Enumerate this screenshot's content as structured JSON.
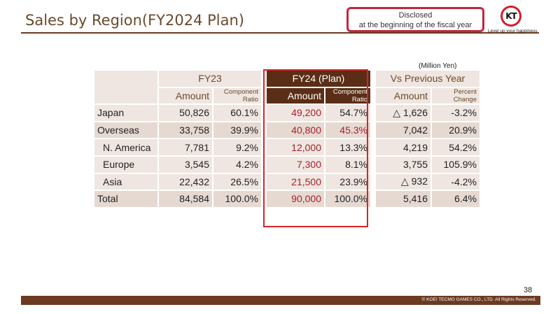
{
  "slide": {
    "title": "Sales by Region(FY2024 Plan)",
    "disclosed_line1": "Disclosed",
    "disclosed_line2": "at the beginning of the fiscal year",
    "logo_text": "KT",
    "logo_tagline": "Level up your happiness",
    "unit": "(Million Yen)",
    "page_number": "38",
    "copyright": "© KOEI TECMO GAMES CO., LTD. All Rights Reserved."
  },
  "table": {
    "groups": {
      "fy23": "FY23",
      "fy24": "FY24 (Plan)",
      "vs": "Vs Previous Year"
    },
    "subheaders": {
      "amount": "Amount",
      "component_ratio_1": "Component",
      "component_ratio_2": "Ratio",
      "percent_change_1": "Percent",
      "percent_change_2": "Change"
    },
    "rows": [
      {
        "region": "Japan",
        "fy23_amount": "50,826",
        "fy23_ratio": "60.1%",
        "fy24_amount": "49,200",
        "fy24_ratio": "54.7%",
        "vs_amount": "△ 1,626",
        "vs_pct": "-3.2%"
      },
      {
        "region": "Overseas",
        "fy23_amount": "33,758",
        "fy23_ratio": "39.9%",
        "fy24_amount": "40,800",
        "fy24_ratio": "45.3%",
        "vs_amount": "7,042",
        "vs_pct": "20.9%"
      },
      {
        "region": "N. America",
        "fy23_amount": "7,781",
        "fy23_ratio": "9.2%",
        "fy24_amount": "12,000",
        "fy24_ratio": "13.3%",
        "vs_amount": "4,219",
        "vs_pct": "54.2%"
      },
      {
        "region": "Europe",
        "fy23_amount": "3,545",
        "fy23_ratio": "4.2%",
        "fy24_amount": "7,300",
        "fy24_ratio": "8.1%",
        "vs_amount": "3,755",
        "vs_pct": "105.9%"
      },
      {
        "region": "Asia",
        "fy23_amount": "22,432",
        "fy23_ratio": "26.5%",
        "fy24_amount": "21,500",
        "fy24_ratio": "23.9%",
        "vs_amount": "△ 932",
        "vs_pct": "-4.2%"
      },
      {
        "region": "Total",
        "fy23_amount": "84,584",
        "fy23_ratio": "100.0%",
        "fy24_amount": "90,000",
        "fy24_ratio": "100.0%",
        "vs_amount": "5,416",
        "vs_pct": "6.4%"
      }
    ]
  },
  "colors": {
    "accent_red": "#d8232c",
    "brand_brown": "#6b3a20",
    "plan_header_bg": "#5a2e16",
    "plan_value_red": "#a5222a"
  }
}
